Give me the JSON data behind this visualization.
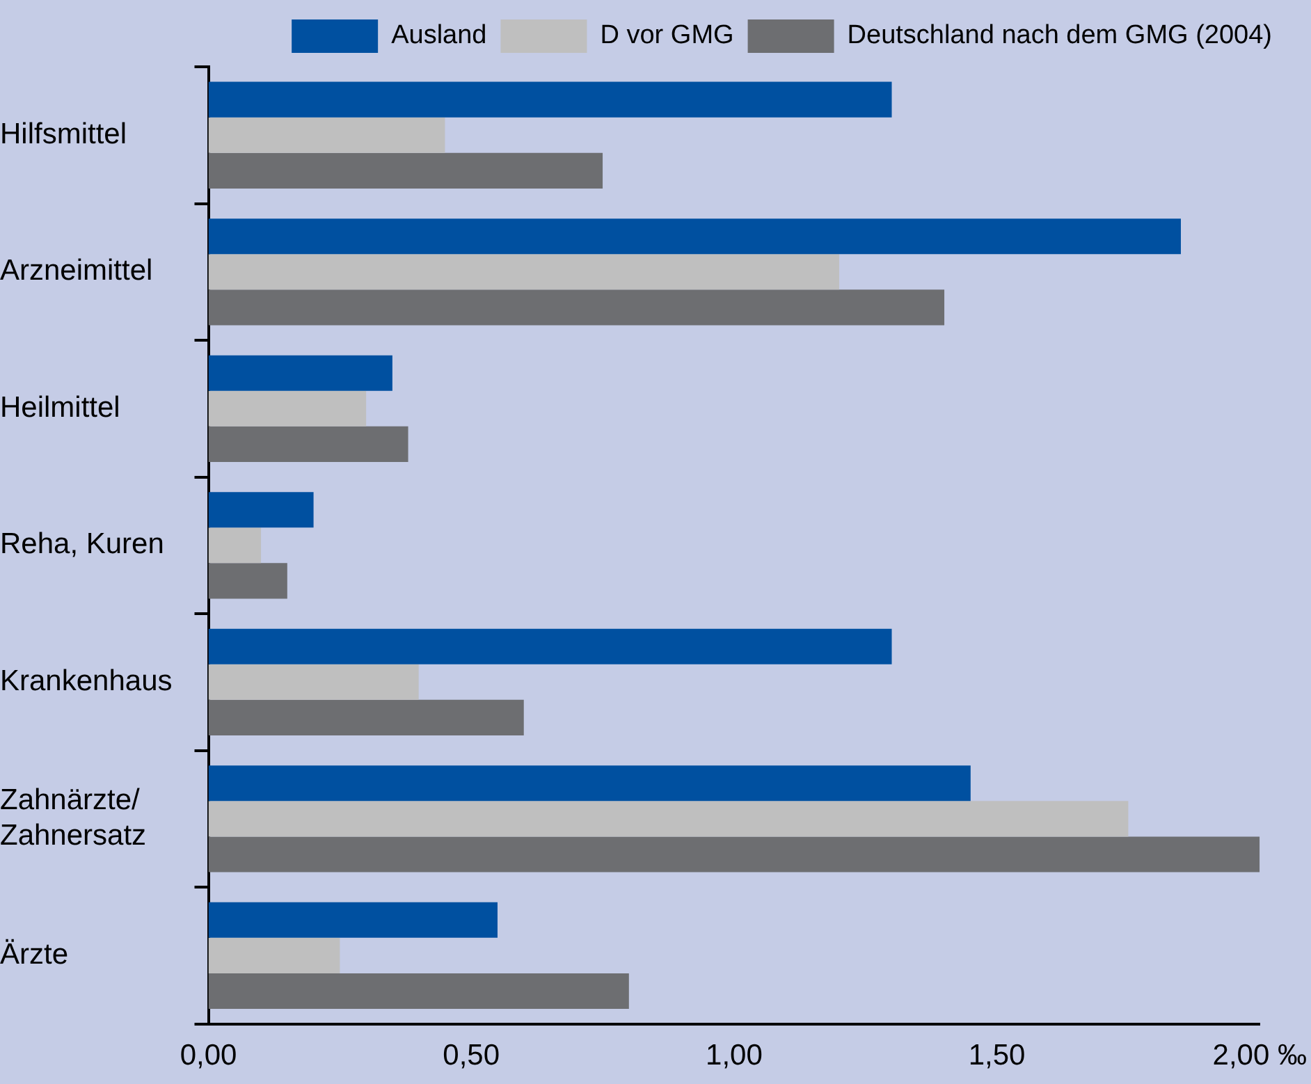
{
  "chart_data": {
    "type": "bar",
    "orientation": "horizontal",
    "categories": [
      "Hilfsmittel",
      "Arzneimittel",
      "Heilmittel",
      "Reha, Kuren",
      "Krankenhaus",
      "Zahnärzte/Zahnersatz",
      "Ärzte"
    ],
    "series": [
      {
        "name": "Ausland",
        "color": "#0050a0",
        "values": [
          1.3,
          1.85,
          0.35,
          0.2,
          1.3,
          1.45,
          0.55
        ]
      },
      {
        "name": "D vor GMG",
        "color": "#bfbfbf",
        "values": [
          0.45,
          1.2,
          0.3,
          0.1,
          0.4,
          1.75,
          0.25
        ]
      },
      {
        "name": "Deutschland nach dem GMG (2004)",
        "color": "#6d6e71",
        "values": [
          0.75,
          1.4,
          0.38,
          0.15,
          0.6,
          2.0,
          0.8
        ]
      }
    ],
    "xlim": [
      0,
      2
    ],
    "xticks": [
      {
        "value": 0,
        "label": "0,00"
      },
      {
        "value": 0.5,
        "label": "0,50"
      },
      {
        "value": 1,
        "label": "1,00"
      },
      {
        "value": 1.5,
        "label": "1,50"
      },
      {
        "value": 2,
        "label": "2,00 ‰"
      }
    ],
    "legend": "top right",
    "grid": false
  }
}
